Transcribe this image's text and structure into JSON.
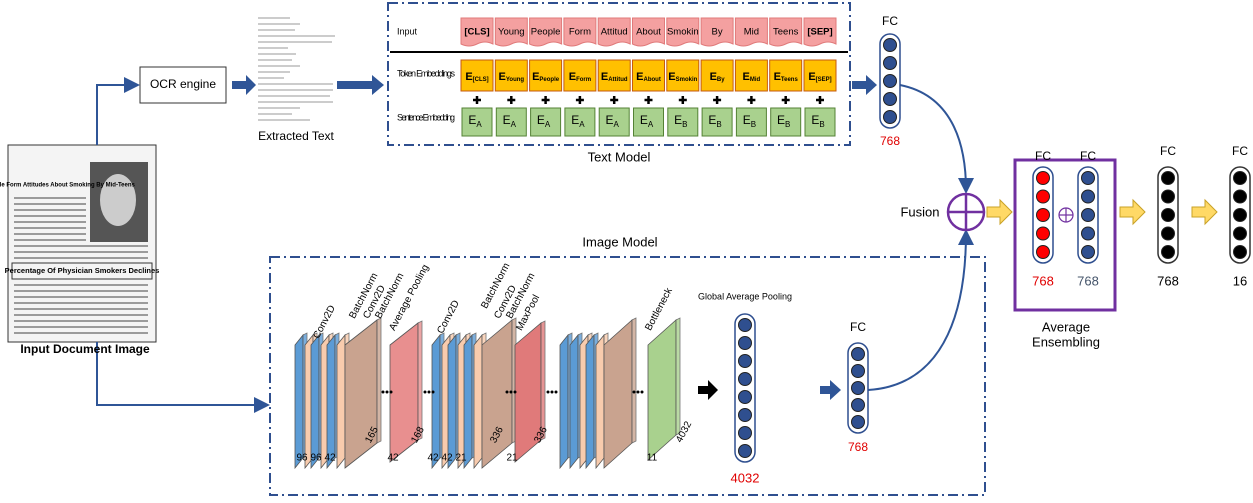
{
  "input_document": {
    "headline": "Young People Form Attitudes About Smoking By Mid-Teens",
    "subheadline": "Percentage Of Physician Smokers Declines",
    "label": "Input Document Image"
  },
  "ocr": {
    "label": "OCR engine"
  },
  "extracted_text": {
    "label": "Extracted Text"
  },
  "text_model": {
    "title": "Text Model",
    "row_labels": [
      "Input",
      "Token Embeddings",
      "Sentence Embedding"
    ],
    "tokens": [
      "[CLS]",
      "Young",
      "People",
      "Form",
      "Attitud",
      "About",
      "Smokin",
      "By",
      "Mid",
      "Teens",
      "[SEP]"
    ],
    "token_embeddings": [
      {
        "base": "E",
        "sub": "[CLS]"
      },
      {
        "base": "E",
        "sub": "Young"
      },
      {
        "base": "E",
        "sub": "People"
      },
      {
        "base": "E",
        "sub": "Form"
      },
      {
        "base": "E",
        "sub": "Attitud"
      },
      {
        "base": "E",
        "sub": "About"
      },
      {
        "base": "E",
        "sub": "Smokin"
      },
      {
        "base": "E",
        "sub": "By"
      },
      {
        "base": "E",
        "sub": "Mid"
      },
      {
        "base": "E",
        "sub": "Teens"
      },
      {
        "base": "E",
        "sub": "[SEP]"
      }
    ],
    "sentence_embeddings": [
      {
        "base": "E",
        "sub": "A"
      },
      {
        "base": "E",
        "sub": "A"
      },
      {
        "base": "E",
        "sub": "A"
      },
      {
        "base": "E",
        "sub": "A"
      },
      {
        "base": "E",
        "sub": "A"
      },
      {
        "base": "E",
        "sub": "A"
      },
      {
        "base": "E",
        "sub": "B"
      },
      {
        "base": "E",
        "sub": "B"
      },
      {
        "base": "E",
        "sub": "B"
      },
      {
        "base": "E",
        "sub": "B"
      },
      {
        "base": "E",
        "sub": "B"
      }
    ],
    "fc": {
      "label": "FC",
      "size": "768"
    }
  },
  "image_model": {
    "title": "Image Model",
    "layer_labels": [
      "Conv2D",
      "BatchNorm",
      "Conv2D",
      "BatchNorm",
      "Average Pooling",
      "Conv2D",
      "BatchNorm",
      "Conv2D",
      "BatchNorm",
      "MaxPool",
      "Bottleneck"
    ],
    "dims": [
      "96",
      "96",
      "42",
      "165",
      "42",
      "168",
      "42",
      "42",
      "21",
      "336",
      "21",
      "336",
      "11",
      "4032"
    ],
    "gap": {
      "label": "Global Average Pooling",
      "size": "4032"
    },
    "fc": {
      "label": "FC",
      "size": "768"
    }
  },
  "fusion": {
    "label": "Fusion"
  },
  "ensemble": {
    "fc_labels": [
      "FC",
      "FC"
    ],
    "sizes": [
      "768",
      "768"
    ],
    "title_lines": [
      "Average",
      "Ensembling"
    ]
  },
  "outputs": [
    {
      "label": "FC",
      "size": "768"
    },
    {
      "label": "FC",
      "size": "16"
    }
  ]
}
